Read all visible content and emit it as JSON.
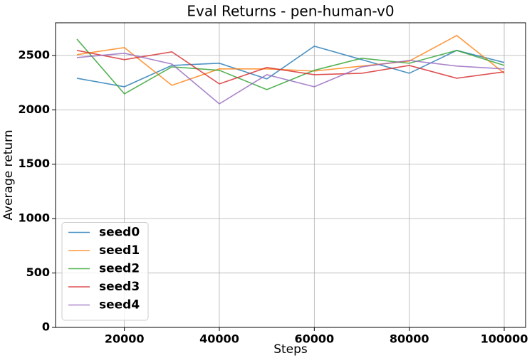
{
  "chart_data": {
    "type": "line",
    "title": "Eval Returns - pen-human-v0",
    "x_label": "Steps",
    "y_label": "Average return",
    "x": [
      10000,
      20000,
      30000,
      40000,
      50000,
      60000,
      70000,
      80000,
      90000,
      100000
    ],
    "series": [
      {
        "name": "seed0",
        "color": "#1f77b4",
        "values": [
          2290,
          2212,
          2408,
          2428,
          2284,
          2585,
          2461,
          2336,
          2546,
          2435
        ]
      },
      {
        "name": "seed1",
        "color": "#ff7f0e",
        "values": [
          2507,
          2572,
          2225,
          2376,
          2376,
          2356,
          2402,
          2448,
          2683,
          2336
        ]
      },
      {
        "name": "seed2",
        "color": "#2ca02c",
        "values": [
          2650,
          2147,
          2395,
          2363,
          2186,
          2363,
          2474,
          2428,
          2546,
          2408
        ]
      },
      {
        "name": "seed3",
        "color": "#d62728",
        "values": [
          2546,
          2461,
          2533,
          2238,
          2389,
          2323,
          2336,
          2408,
          2290,
          2349
        ]
      },
      {
        "name": "seed4",
        "color": "#9467bd",
        "values": [
          2480,
          2520,
          2421,
          2055,
          2323,
          2212,
          2395,
          2454,
          2402,
          2376
        ]
      }
    ],
    "xlim": [
      5500,
      104500
    ],
    "xticks": [
      20000,
      40000,
      60000,
      80000,
      100000
    ],
    "ylim": [
      0,
      2800
    ],
    "yticks": [
      0,
      500,
      1000,
      1500,
      2000,
      2500
    ],
    "grid": true,
    "legend": "lower left"
  }
}
